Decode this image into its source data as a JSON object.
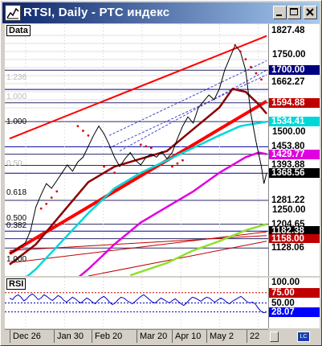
{
  "window": {
    "title": "RTSI, Daily - РТС индекс",
    "icon": "chart-line-icon",
    "buttons": [
      "minimize-icon",
      "maximize-icon",
      "close-icon"
    ]
  },
  "panels": {
    "price_label": "Data",
    "rsi_label": "RSI"
  },
  "fib_labels": [
    {
      "text": "1.236",
      "price": 1660,
      "faint": true
    },
    {
      "text": "1.000",
      "price": 1598,
      "faint": true
    },
    {
      "text": "1.000",
      "price": 1516,
      "faint": false
    },
    {
      "text": "0.50",
      "price": 1382,
      "faint": true
    },
    {
      "text": "0.618",
      "price": 1289,
      "faint": false
    },
    {
      "text": "0.500",
      "price": 1207,
      "faint": false
    },
    {
      "text": "0.382",
      "price": 1183,
      "faint": false
    },
    {
      "text": "1.000",
      "price": 1073,
      "faint": false
    }
  ],
  "chart_data": {
    "type": "line",
    "title": "RTSI, Daily - РТС индекс",
    "x_ticks": [
      "Dec 26",
      "Jan 30",
      "Feb 20",
      "Mar 20",
      "Apr 10",
      "May 2",
      "22"
    ],
    "y_ticks": [
      1750.0,
      1500.0,
      1250.0
    ],
    "ylim": [
      1038,
      1848
    ],
    "price_series": [
      {
        "t": 0,
        "p": 1110
      },
      {
        "t": 3,
        "p": 1125
      },
      {
        "t": 6,
        "p": 1145
      },
      {
        "t": 8,
        "p": 1185
      },
      {
        "t": 10,
        "p": 1260
      },
      {
        "t": 12,
        "p": 1300
      },
      {
        "t": 14,
        "p": 1335
      },
      {
        "t": 16,
        "p": 1320
      },
      {
        "t": 18,
        "p": 1345
      },
      {
        "t": 20,
        "p": 1370
      },
      {
        "t": 22,
        "p": 1395
      },
      {
        "t": 24,
        "p": 1375
      },
      {
        "t": 26,
        "p": 1405
      },
      {
        "t": 28,
        "p": 1420
      },
      {
        "t": 30,
        "p": 1455
      },
      {
        "t": 32,
        "p": 1490
      },
      {
        "t": 34,
        "p": 1520
      },
      {
        "t": 36,
        "p": 1495
      },
      {
        "t": 38,
        "p": 1460
      },
      {
        "t": 40,
        "p": 1420
      },
      {
        "t": 42,
        "p": 1390
      },
      {
        "t": 44,
        "p": 1415
      },
      {
        "t": 46,
        "p": 1435
      },
      {
        "t": 48,
        "p": 1410
      },
      {
        "t": 50,
        "p": 1395
      },
      {
        "t": 52,
        "p": 1420
      },
      {
        "t": 54,
        "p": 1430
      },
      {
        "t": 56,
        "p": 1420
      },
      {
        "t": 58,
        "p": 1438
      },
      {
        "t": 60,
        "p": 1415
      },
      {
        "t": 62,
        "p": 1435
      },
      {
        "t": 64,
        "p": 1480
      },
      {
        "t": 66,
        "p": 1520
      },
      {
        "t": 68,
        "p": 1550
      },
      {
        "t": 70,
        "p": 1530
      },
      {
        "t": 72,
        "p": 1580
      },
      {
        "t": 74,
        "p": 1600
      },
      {
        "t": 76,
        "p": 1620
      },
      {
        "t": 78,
        "p": 1605
      },
      {
        "t": 80,
        "p": 1640
      },
      {
        "t": 82,
        "p": 1700
      },
      {
        "t": 84,
        "p": 1740
      },
      {
        "t": 86,
        "p": 1780
      },
      {
        "t": 88,
        "p": 1760
      },
      {
        "t": 90,
        "p": 1700
      },
      {
        "t": 92,
        "p": 1560
      },
      {
        "t": 94,
        "p": 1470
      },
      {
        "t": 96,
        "p": 1390
      },
      {
        "t": 97,
        "p": 1335
      },
      {
        "t": 98,
        "p": 1368.56
      }
    ],
    "series": [
      {
        "name": "MA fast",
        "color": "#8b0000",
        "values": [
          [
            0,
            1075
          ],
          [
            10,
            1140
          ],
          [
            20,
            1240
          ],
          [
            30,
            1340
          ],
          [
            40,
            1390
          ],
          [
            50,
            1415
          ],
          [
            60,
            1440
          ],
          [
            70,
            1510
          ],
          [
            80,
            1580
          ],
          [
            85,
            1640
          ],
          [
            90,
            1630
          ],
          [
            95,
            1590
          ],
          [
            98,
            1560
          ]
        ]
      },
      {
        "name": "MA slow",
        "color": "#00d8d8",
        "values": [
          [
            0,
            990
          ],
          [
            10,
            1060
          ],
          [
            20,
            1150
          ],
          [
            30,
            1240
          ],
          [
            40,
            1320
          ],
          [
            50,
            1370
          ],
          [
            60,
            1410
          ],
          [
            70,
            1450
          ],
          [
            80,
            1490
          ],
          [
            88,
            1520
          ],
          [
            95,
            1530
          ],
          [
            98,
            1534
          ]
        ]
      },
      {
        "name": "MA long",
        "color": "#e000e0",
        "values": [
          [
            0,
            860
          ],
          [
            10,
            920
          ],
          [
            20,
            990
          ],
          [
            30,
            1060
          ],
          [
            40,
            1140
          ],
          [
            50,
            1210
          ],
          [
            60,
            1260
          ],
          [
            70,
            1310
          ],
          [
            80,
            1370
          ],
          [
            90,
            1420
          ],
          [
            95,
            1435
          ],
          [
            98,
            1430
          ]
        ]
      },
      {
        "name": "MA trend",
        "color": "#90e030",
        "values": [
          [
            46,
            1040
          ],
          [
            60,
            1080
          ],
          [
            70,
            1120
          ],
          [
            80,
            1150
          ],
          [
            90,
            1185
          ],
          [
            98,
            1205
          ]
        ]
      }
    ],
    "parabolic_sar": [
      [
        12,
        1255
      ],
      [
        14,
        1270
      ],
      [
        16,
        1290
      ],
      [
        18,
        1310
      ],
      [
        26,
        1520
      ],
      [
        28,
        1505
      ],
      [
        30,
        1490
      ],
      [
        36,
        1390
      ],
      [
        38,
        1380
      ],
      [
        40,
        1370
      ],
      [
        50,
        1460
      ],
      [
        52,
        1455
      ],
      [
        54,
        1450
      ],
      [
        62,
        1390
      ],
      [
        64,
        1400
      ],
      [
        66,
        1410
      ],
      [
        86,
        1780
      ],
      [
        88,
        1760
      ],
      [
        90,
        1735
      ],
      [
        92,
        1710
      ],
      [
        94,
        1690
      ],
      [
        96,
        1670
      ]
    ],
    "channels": [
      {
        "name": "upper",
        "color": "#ff0000",
        "points": [
          [
            0,
            1480
          ],
          [
            98,
            1810
          ]
        ]
      },
      {
        "name": "lower",
        "color": "#ff0000",
        "points": [
          [
            0,
            1110
          ],
          [
            98,
            1600
          ]
        ]
      },
      {
        "name": "inner-upper",
        "color": "#4444cc",
        "points": [
          [
            38,
            1490
          ],
          [
            98,
            1730
          ]
        ]
      },
      {
        "name": "inner-lower",
        "color": "#4444cc",
        "points": [
          [
            38,
            1450
          ],
          [
            98,
            1685
          ]
        ]
      },
      {
        "name": "inner-mid",
        "color": "#4444cc",
        "points": [
          [
            42,
            1440
          ],
          [
            98,
            1700
          ]
        ]
      }
    ],
    "horizontal_levels": [
      1700.0,
      1638.0,
      1594.88,
      1534.41,
      1453.8,
      1429.77,
      1393.88,
      1368.56,
      1281.22,
      1204.65,
      1182.38,
      1158.0,
      1128.06
    ],
    "price_chips": [
      {
        "text": "1827.48",
        "bg": "#ffffff",
        "fg": "#000000"
      },
      {
        "text": "1700.00",
        "bg": "#000080",
        "fg": "#ffffff"
      },
      {
        "text": "1662.27",
        "bg": "#ffffff",
        "fg": "#000000"
      },
      {
        "text": "1594.88",
        "bg": "#c00000",
        "fg": "#ffffff"
      },
      {
        "text": "1534.41",
        "bg": "#00d8d8",
        "fg": "#ffffff"
      },
      {
        "text": "1453.80",
        "bg": "#ffffff",
        "fg": "#000000"
      },
      {
        "text": "1429.77",
        "bg": "#e000e0",
        "fg": "#ffffff"
      },
      {
        "text": "1393.88",
        "bg": "#ffffff",
        "fg": "#000000"
      },
      {
        "text": "1368.56",
        "bg": "#000000",
        "fg": "#ffffff"
      },
      {
        "text": "1281.22",
        "bg": "#ffffff",
        "fg": "#000000"
      },
      {
        "text": "1204.65",
        "bg": "#ffffff",
        "fg": "#000000"
      },
      {
        "text": "1182.38",
        "bg": "#000000",
        "fg": "#ffffff"
      },
      {
        "text": "1158.00",
        "bg": "#c00000",
        "fg": "#ffffff"
      },
      {
        "text": "1128.06",
        "bg": "#ffffff",
        "fg": "#000000"
      }
    ],
    "rsi": {
      "levels": [
        100.0,
        75.0,
        50.0,
        28.07
      ],
      "chips": [
        {
          "text": "100.00",
          "bg": "#ffffff",
          "fg": "#000000"
        },
        {
          "text": "75.00",
          "bg": "#c00000",
          "fg": "#ffffff"
        },
        {
          "text": "50.00",
          "bg": "#ffffff",
          "fg": "#000000"
        },
        {
          "text": "28.07",
          "bg": "#0000ff",
          "fg": "#ffffff"
        }
      ],
      "values": [
        62,
        58,
        66,
        70,
        64,
        55,
        60,
        68,
        72,
        66,
        58,
        62,
        70,
        66,
        60,
        56,
        62,
        68,
        64,
        56,
        52,
        58,
        64,
        60,
        54,
        50,
        56,
        62,
        58,
        52,
        48,
        56,
        62,
        66,
        60,
        52,
        46,
        50,
        58,
        64,
        62,
        56,
        52,
        48,
        54,
        60,
        66,
        70,
        64,
        58,
        52,
        50,
        56,
        62,
        58,
        54,
        50,
        56,
        60,
        54,
        48,
        44,
        50,
        58,
        64,
        62,
        58,
        54,
        60,
        64,
        62,
        56,
        52,
        58,
        62,
        58,
        52,
        48,
        54,
        58,
        62,
        66,
        60,
        54,
        50,
        52,
        48,
        38,
        30,
        26,
        28.07
      ]
    }
  }
}
